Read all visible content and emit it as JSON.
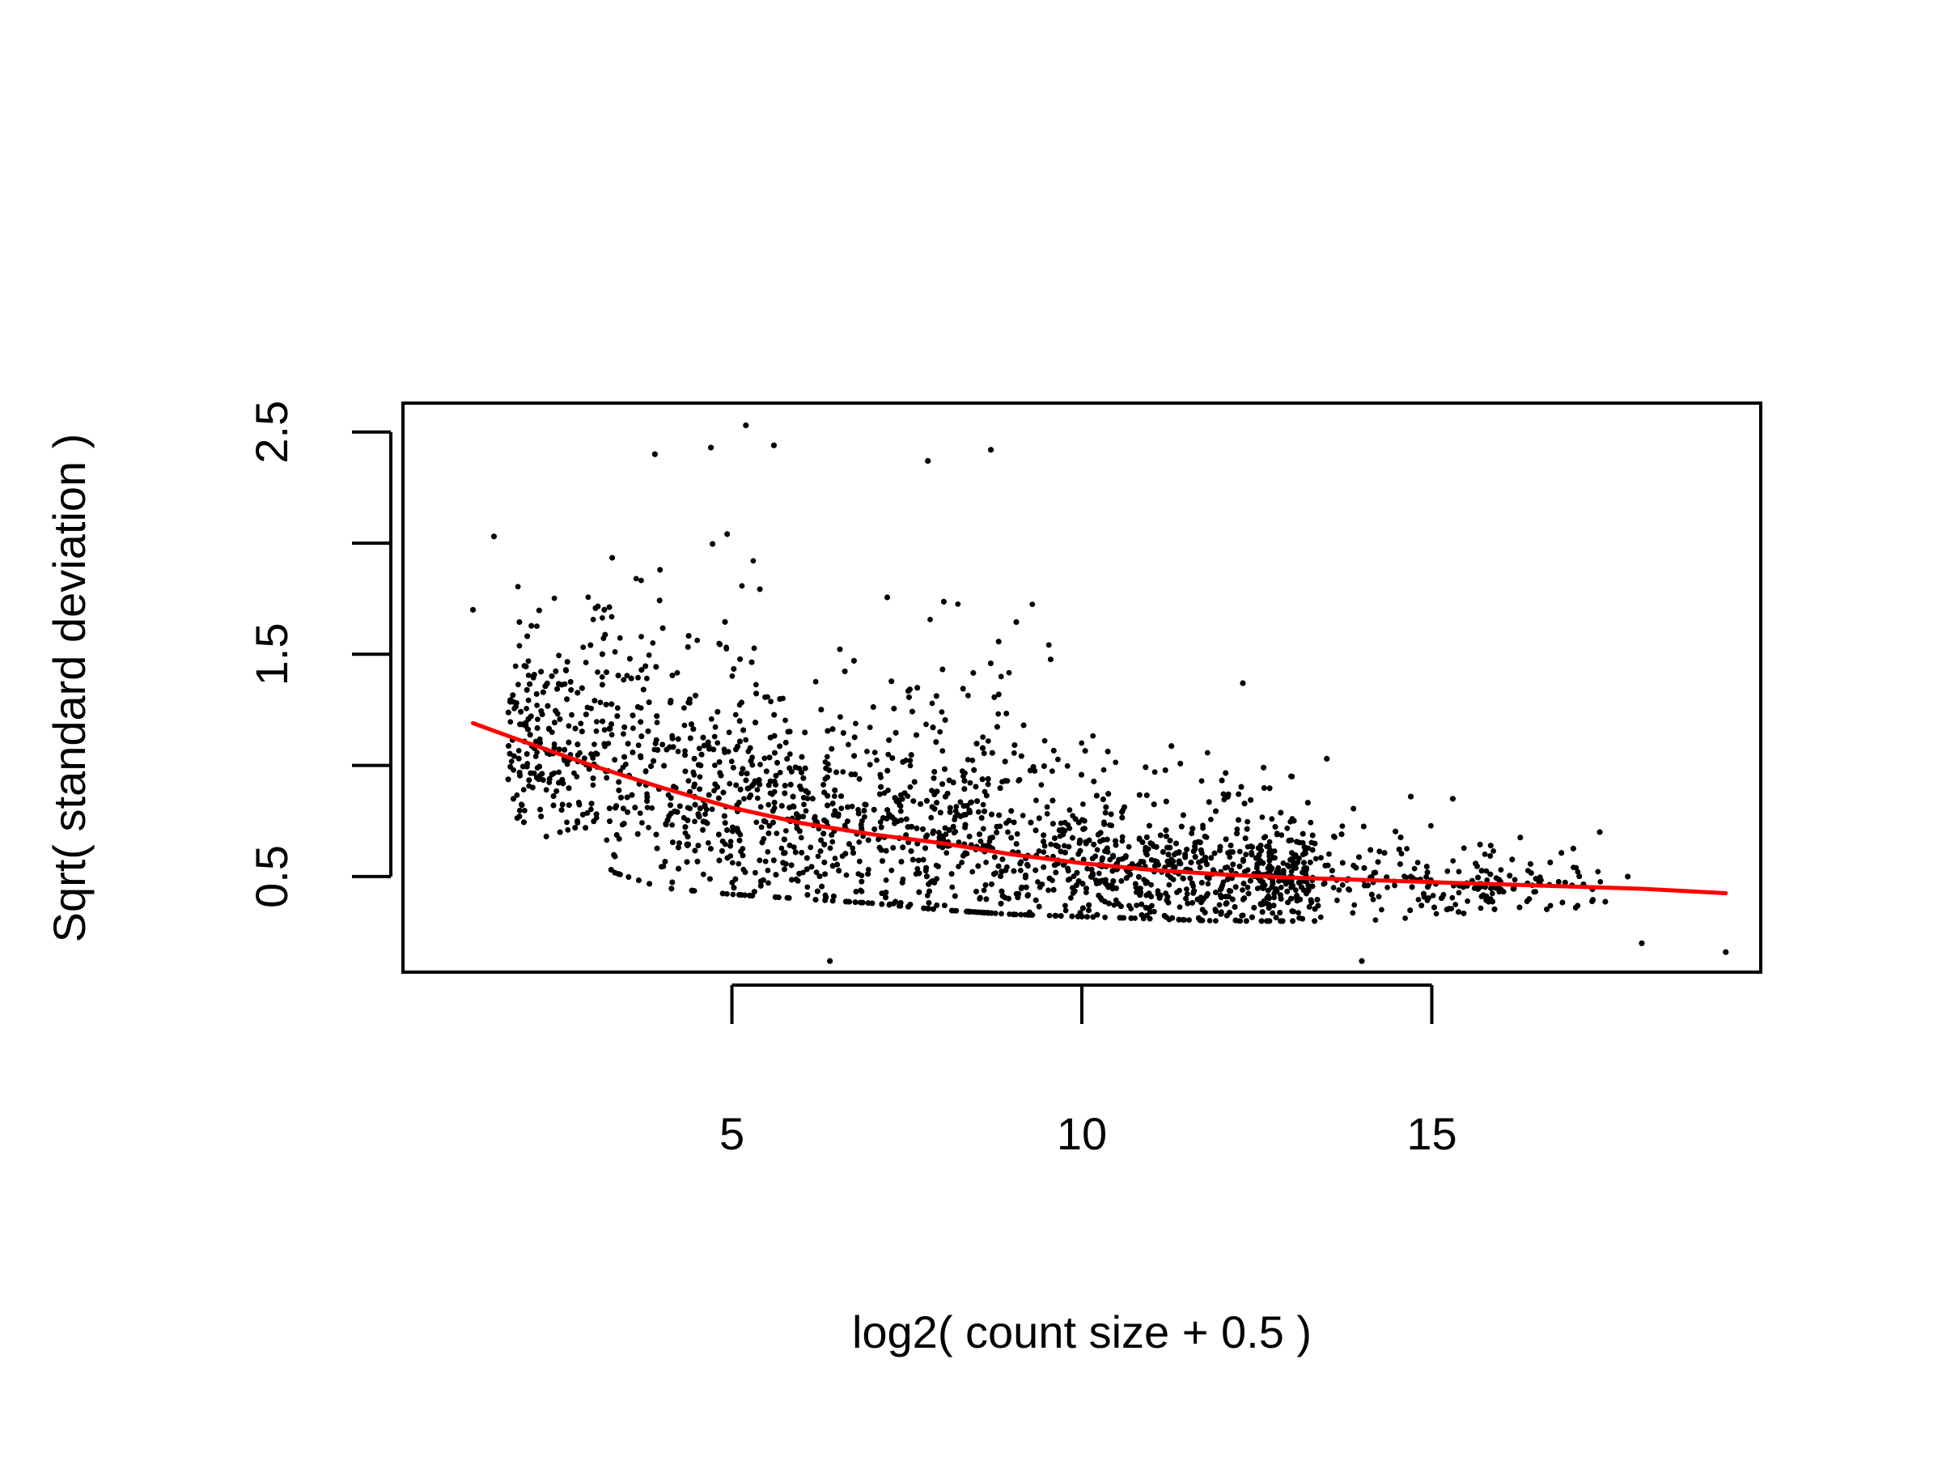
{
  "chart_data": {
    "type": "scatter",
    "title": "",
    "xlabel": "log2( count size + 0.5 )",
    "ylabel": "Sqrt( standard deviation )",
    "xlim": [
      0.3,
      19.7
    ],
    "ylim": [
      0.07,
      2.63
    ],
    "x_ticks": [
      5,
      10,
      15
    ],
    "x_tick_labels": [
      "5",
      "10",
      "15"
    ],
    "y_ticks": [
      0.5,
      1.0,
      1.5,
      2.0,
      2.5
    ],
    "y_tick_labels": [
      "0.5",
      "",
      "1.5",
      "",
      "2.5"
    ],
    "grid": false,
    "colors": {
      "points": "#000000",
      "trend": "#ff0000",
      "frame": "#000000"
    },
    "point_summary": [
      {
        "x": 1.5,
        "y_low": 0.85,
        "y_high": 1.45,
        "y_center": 1.15
      },
      {
        "x": 2.0,
        "y_low": 0.75,
        "y_high": 1.85,
        "y_center": 1.08
      },
      {
        "x": 3.0,
        "y_low": 0.55,
        "y_high": 2.05,
        "y_center": 0.98
      },
      {
        "x": 4.0,
        "y_low": 0.45,
        "y_high": 2.05,
        "y_center": 0.88
      },
      {
        "x": 5.0,
        "y_low": 0.42,
        "y_high": 2.1,
        "y_center": 0.78
      },
      {
        "x": 6.0,
        "y_low": 0.4,
        "y_high": 1.9,
        "y_center": 0.72
      },
      {
        "x": 7.0,
        "y_low": 0.38,
        "y_high": 1.8,
        "y_center": 0.67
      },
      {
        "x": 8.0,
        "y_low": 0.35,
        "y_high": 1.75,
        "y_center": 0.62
      },
      {
        "x": 9.0,
        "y_low": 0.33,
        "y_high": 1.9,
        "y_center": 0.57
      },
      {
        "x": 10.0,
        "y_low": 0.32,
        "y_high": 1.3,
        "y_center": 0.53
      },
      {
        "x": 11.0,
        "y_low": 0.31,
        "y_high": 1.15,
        "y_center": 0.5
      },
      {
        "x": 12.0,
        "y_low": 0.3,
        "y_high": 1.05,
        "y_center": 0.48
      },
      {
        "x": 13.0,
        "y_low": 0.3,
        "y_high": 0.95,
        "y_center": 0.47
      },
      {
        "x": 14.0,
        "y_low": 0.3,
        "y_high": 0.85,
        "y_center": 0.46
      },
      {
        "x": 15.0,
        "y_low": 0.32,
        "y_high": 0.8,
        "y_center": 0.45
      },
      {
        "x": 16.0,
        "y_low": 0.34,
        "y_high": 0.7,
        "y_center": 0.44
      },
      {
        "x": 17.0,
        "y_low": 0.36,
        "y_high": 0.65,
        "y_center": 0.43
      }
    ],
    "outliers": [
      {
        "x": 1.3,
        "y": 1.7
      },
      {
        "x": 1.6,
        "y": 2.03
      },
      {
        "x": 3.9,
        "y": 2.4
      },
      {
        "x": 4.7,
        "y": 2.43
      },
      {
        "x": 5.2,
        "y": 2.53
      },
      {
        "x": 5.6,
        "y": 2.44
      },
      {
        "x": 8.7,
        "y": 2.42
      },
      {
        "x": 7.8,
        "y": 2.37
      },
      {
        "x": 12.3,
        "y": 1.37
      },
      {
        "x": 13.5,
        "y": 1.03
      },
      {
        "x": 14.7,
        "y": 0.86
      },
      {
        "x": 15.3,
        "y": 0.85
      },
      {
        "x": 17.4,
        "y": 0.7
      },
      {
        "x": 17.8,
        "y": 0.5
      },
      {
        "x": 18.0,
        "y": 0.2
      },
      {
        "x": 19.2,
        "y": 0.16
      },
      {
        "x": 6.4,
        "y": 0.12
      },
      {
        "x": 14.0,
        "y": 0.12
      }
    ],
    "trend_line": {
      "x": [
        1.3,
        2,
        3,
        4,
        5,
        6,
        7,
        8,
        9,
        10,
        11,
        12,
        13,
        14,
        15,
        16,
        17,
        18,
        19.2
      ],
      "y": [
        1.19,
        1.11,
        1.0,
        0.9,
        0.81,
        0.74,
        0.69,
        0.65,
        0.6,
        0.56,
        0.53,
        0.51,
        0.495,
        0.485,
        0.475,
        0.465,
        0.455,
        0.445,
        0.425
      ]
    }
  }
}
